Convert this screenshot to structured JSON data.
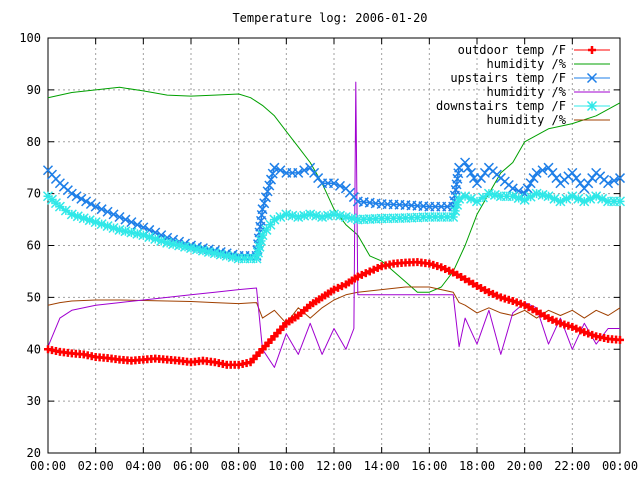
{
  "chart_data": {
    "type": "line",
    "title": "Temperature log: 2006-01-20",
    "xlabel": "",
    "ylabel": "",
    "xlim": [
      "00:00",
      "24:00"
    ],
    "ylim": [
      20,
      100
    ],
    "x_ticks": [
      "00:00",
      "02:00",
      "04:00",
      "06:00",
      "08:00",
      "10:00",
      "12:00",
      "14:00",
      "16:00",
      "18:00",
      "20:00",
      "22:00",
      "00:00"
    ],
    "y_ticks": [
      20,
      30,
      40,
      50,
      60,
      70,
      80,
      90,
      100
    ],
    "grid": true,
    "legend_position": "top-right",
    "series": [
      {
        "name": "outdoor temp /F",
        "color": "#ff0000",
        "marker": "plus",
        "x": [
          "00:00",
          "00:30",
          "01:00",
          "01:30",
          "02:00",
          "02:30",
          "03:00",
          "03:30",
          "04:00",
          "04:30",
          "05:00",
          "05:30",
          "06:00",
          "06:30",
          "07:00",
          "07:30",
          "08:00",
          "08:30",
          "09:00",
          "09:30",
          "10:00",
          "10:30",
          "11:00",
          "11:30",
          "12:00",
          "12:30",
          "13:00",
          "13:30",
          "14:00",
          "14:30",
          "15:00",
          "15:30",
          "16:00",
          "16:30",
          "17:00",
          "17:30",
          "18:00",
          "18:30",
          "19:00",
          "19:30",
          "20:00",
          "20:30",
          "21:00",
          "21:30",
          "22:00",
          "22:30",
          "23:00",
          "23:30",
          "24:00"
        ],
        "y": [
          40,
          39.5,
          39.2,
          39,
          38.5,
          38.3,
          38,
          37.8,
          38,
          38.2,
          38,
          37.8,
          37.5,
          37.8,
          37.5,
          37,
          37,
          37.5,
          40,
          42.5,
          45,
          46.5,
          48.5,
          50,
          51.5,
          52.5,
          54,
          55,
          56,
          56.5,
          56.7,
          56.8,
          56.5,
          55.8,
          54.8,
          53.5,
          52.2,
          51,
          50,
          49.3,
          48.5,
          47.3,
          46,
          45,
          44.3,
          43.3,
          42.5,
          42,
          41.8
        ]
      },
      {
        "name": "humidity /%",
        "color": "#00a000",
        "marker": "none",
        "x": [
          "00:00",
          "00:30",
          "01:00",
          "02:00",
          "03:00",
          "04:00",
          "05:00",
          "06:00",
          "07:00",
          "08:00",
          "08:30",
          "09:00",
          "09:30",
          "10:00",
          "10:30",
          "11:00",
          "11:30",
          "12:00",
          "12:30",
          "13:00",
          "13:30",
          "14:00",
          "14:30",
          "15:00",
          "15:30",
          "16:00",
          "16:30",
          "17:00",
          "17:30",
          "18:00",
          "18:30",
          "19:00",
          "19:30",
          "20:00",
          "21:00",
          "22:00",
          "23:00",
          "24:00"
        ],
        "y": [
          88.5,
          89,
          89.5,
          90,
          90.5,
          89.8,
          89,
          88.8,
          89,
          89.2,
          88.5,
          87,
          85,
          82,
          79,
          76,
          72,
          67,
          64,
          62,
          58,
          57,
          55,
          53,
          51,
          51,
          52,
          55,
          60,
          66,
          70,
          74,
          76,
          80,
          82.5,
          83.5,
          85,
          87.5
        ]
      },
      {
        "name": "upstairs temp /F",
        "color": "#1e7fe8",
        "marker": "cross",
        "x": [
          "00:00",
          "00:30",
          "01:00",
          "02:00",
          "03:00",
          "04:00",
          "05:00",
          "06:00",
          "07:00",
          "08:00",
          "08:45",
          "09:00",
          "09:30",
          "10:00",
          "10:30",
          "11:00",
          "11:30",
          "12:00",
          "12:30",
          "13:00",
          "14:00",
          "15:00",
          "16:00",
          "17:00",
          "17:15",
          "17:30",
          "18:00",
          "18:30",
          "19:00",
          "19:30",
          "20:00",
          "20:30",
          "21:00",
          "21:30",
          "22:00",
          "22:30",
          "23:00",
          "23:30",
          "24:00"
        ],
        "y": [
          74.5,
          72,
          70,
          67.5,
          65.5,
          63.5,
          61.5,
          60,
          59,
          58,
          58,
          67,
          75,
          74,
          74,
          75,
          72,
          72,
          71,
          68.5,
          68,
          67.8,
          67.5,
          67.5,
          75,
          76,
          72,
          75,
          73,
          71,
          70,
          74,
          75,
          72,
          74,
          71,
          74,
          72,
          73
        ]
      },
      {
        "name": "humidity /%",
        "color": "#a000d0",
        "marker": "none",
        "x": [
          "00:00",
          "00:30",
          "01:00",
          "02:00",
          "03:00",
          "04:00",
          "05:00",
          "06:00",
          "07:00",
          "08:00",
          "08:45",
          "09:00",
          "09:30",
          "10:00",
          "10:30",
          "11:00",
          "11:30",
          "12:00",
          "12:30",
          "12:50",
          "12:55",
          "13:00",
          "13:30",
          "14:00",
          "15:00",
          "16:00",
          "17:00",
          "17:15",
          "17:30",
          "18:00",
          "18:30",
          "19:00",
          "19:30",
          "20:00",
          "20:30",
          "21:00",
          "21:30",
          "22:00",
          "22:30",
          "23:00",
          "23:30",
          "24:00"
        ],
        "y": [
          40.5,
          46,
          47.5,
          48.5,
          49,
          49.5,
          50,
          50.5,
          51,
          51.5,
          51.8,
          40,
          36.5,
          43,
          39,
          45,
          39,
          44,
          40,
          44,
          91.5,
          50.5,
          50.5,
          50.5,
          50.5,
          50.5,
          50.5,
          40.5,
          46,
          41,
          47.5,
          39,
          47,
          49,
          48,
          41,
          46,
          40,
          45,
          41,
          44,
          44
        ]
      },
      {
        "name": "downstairs temp /F",
        "color": "#30e8e8",
        "marker": "star",
        "x": [
          "00:00",
          "00:30",
          "01:00",
          "02:00",
          "03:00",
          "04:00",
          "05:00",
          "06:00",
          "07:00",
          "08:00",
          "08:45",
          "09:00",
          "09:30",
          "10:00",
          "10:30",
          "11:00",
          "11:30",
          "12:00",
          "12:30",
          "13:00",
          "14:00",
          "15:00",
          "16:00",
          "17:00",
          "17:15",
          "17:30",
          "18:00",
          "18:30",
          "19:00",
          "19:30",
          "20:00",
          "20:30",
          "21:00",
          "21:30",
          "22:00",
          "22:30",
          "23:00",
          "23:30",
          "24:00"
        ],
        "y": [
          69.5,
          67.5,
          66,
          64.5,
          63,
          62,
          60.5,
          59.5,
          58.5,
          57.5,
          57.5,
          62,
          65,
          66,
          65.5,
          66,
          65.5,
          66,
          65.5,
          65,
          65.2,
          65.3,
          65.5,
          65.5,
          69,
          69.5,
          68.5,
          70,
          69.5,
          69.5,
          68.8,
          70,
          69.5,
          68.5,
          69.5,
          68.5,
          69.5,
          68.5,
          68.5
        ]
      },
      {
        "name": "humidity /%",
        "color": "#a04000",
        "marker": "none",
        "x": [
          "00:00",
          "00:30",
          "01:00",
          "02:00",
          "03:00",
          "04:00",
          "05:00",
          "06:00",
          "07:00",
          "08:00",
          "08:45",
          "09:00",
          "09:30",
          "10:00",
          "10:30",
          "11:00",
          "11:30",
          "12:00",
          "12:30",
          "13:00",
          "14:00",
          "15:00",
          "16:00",
          "17:00",
          "17:15",
          "17:30",
          "18:00",
          "18:30",
          "19:00",
          "19:30",
          "20:00",
          "20:30",
          "21:00",
          "21:30",
          "22:00",
          "22:30",
          "23:00",
          "23:30",
          "24:00"
        ],
        "y": [
          48.5,
          49,
          49.3,
          49.5,
          49.5,
          49.4,
          49.3,
          49.2,
          49,
          48.8,
          49,
          46,
          47.5,
          45,
          48,
          46,
          48,
          49.5,
          50.5,
          51,
          51.5,
          52,
          52,
          51,
          49,
          48.5,
          47,
          48,
          47,
          46.5,
          47.5,
          46,
          47.5,
          46.5,
          47.5,
          46,
          47.5,
          46.5,
          48
        ]
      }
    ]
  }
}
